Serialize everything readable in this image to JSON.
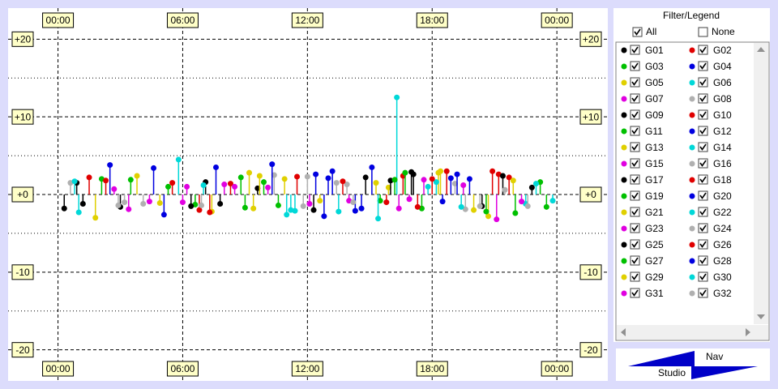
{
  "chart_data": {
    "type": "scatter",
    "xlim": [
      -2.4,
      26.45
    ],
    "ylim": [
      -24,
      24
    ],
    "xticks": [
      {
        "value": 0,
        "label": "00:00"
      },
      {
        "value": 6,
        "label": "06:00"
      },
      {
        "value": 12,
        "label": "12:00"
      },
      {
        "value": 18,
        "label": "18:00"
      },
      {
        "value": 24,
        "label": "00:00"
      }
    ],
    "yticks": [
      {
        "value": 20,
        "label": "+20"
      },
      {
        "value": 10,
        "label": "+10"
      },
      {
        "value": 0,
        "label": "+0"
      },
      -10,
      -20
    ],
    "y_minor_ticks": [
      15,
      5,
      -5,
      -15
    ],
    "grid": true,
    "series": [
      {
        "name": "G01",
        "color": "#000000",
        "x": [
          1.2,
          9.6,
          17.1,
          20.4
        ],
        "values": [
          -1.2,
          0.8,
          2.6,
          -1.5
        ]
      },
      {
        "name": "G02",
        "color": "#e00000",
        "x": [
          5.5,
          15.8,
          18.7,
          21.7
        ],
        "values": [
          1.5,
          -1.0,
          3.0,
          2.2
        ]
      },
      {
        "name": "G03",
        "color": "#00c000",
        "x": [
          2.1,
          10.6,
          17.5,
          23.2
        ],
        "values": [
          2.0,
          -1.4,
          -1.8,
          1.6
        ]
      },
      {
        "name": "G04",
        "color": "#0000e0",
        "x": [
          4.6,
          13.2,
          14.3,
          19.8
        ],
        "values": [
          3.4,
          3.0,
          -2.1,
          2.0
        ]
      },
      {
        "name": "G05",
        "color": "#e0d000",
        "x": [
          1.8,
          9.4,
          18.3,
          20.0
        ],
        "values": [
          -3.0,
          -1.8,
          2.8,
          -2.0
        ]
      },
      {
        "name": "G06",
        "color": "#00d8d8",
        "x": [
          11.2,
          16.3,
          18.2,
          22.5
        ],
        "values": [
          -2.0,
          12.5,
          1.6,
          -1.2
        ]
      },
      {
        "name": "G07",
        "color": "#e000e0",
        "x": [
          6.2,
          10.1,
          16.9,
          21.1
        ],
        "values": [
          1.0,
          0.9,
          -0.6,
          -3.2
        ]
      },
      {
        "name": "G08",
        "color": "#b0b0b0",
        "x": [
          3.2,
          12.0,
          19.1,
          20.3
        ],
        "values": [
          -1.0,
          2.3,
          1.4,
          -1.5
        ]
      },
      {
        "name": "G09",
        "color": "#000000",
        "x": [
          0.9,
          7.8,
          14.8,
          22.8
        ],
        "values": [
          1.5,
          -1.2,
          2.2,
          0.9
        ]
      },
      {
        "name": "G10",
        "color": "#e00000",
        "x": [
          6.8,
          11.5,
          16.6,
          21.2
        ],
        "values": [
          -2.0,
          2.3,
          2.4,
          2.6
        ]
      },
      {
        "name": "G11",
        "color": "#00c000",
        "x": [
          3.5,
          8.8,
          15.5,
          23.5
        ],
        "values": [
          1.9,
          2.2,
          -0.8,
          -1.6
        ]
      },
      {
        "name": "G12",
        "color": "#0000e0",
        "x": [
          5.1,
          12.8,
          15.1,
          18.9
        ],
        "values": [
          -2.6,
          -2.8,
          3.5,
          2.1
        ]
      },
      {
        "name": "G13",
        "color": "#e0d000",
        "x": [
          7.4,
          10.9,
          15.9,
          21.9
        ],
        "values": [
          -2.2,
          2.0,
          0.9,
          1.8
        ]
      },
      {
        "name": "G14",
        "color": "#00d8d8",
        "x": [
          5.8,
          13.5,
          17.8,
          23.8
        ],
        "values": [
          4.5,
          -2.2,
          1.0,
          -0.8
        ]
      },
      {
        "name": "G15",
        "color": "#e000e0",
        "x": [
          2.7,
          6.0,
          14.0,
          19.5
        ],
        "values": [
          0.7,
          -1.0,
          -0.8,
          1.2
        ]
      },
      {
        "name": "G16",
        "color": "#b0b0b0",
        "x": [
          4.1,
          11.8,
          13.9,
          19.6
        ],
        "values": [
          -1.2,
          -1.5,
          1.3,
          -1.9
        ]
      },
      {
        "name": "G17",
        "color": "#000000",
        "x": [
          0.3,
          7.1,
          16.0,
          21.4
        ],
        "values": [
          -1.8,
          1.6,
          1.8,
          2.4
        ]
      },
      {
        "name": "G18",
        "color": "#e00000",
        "x": [
          2.3,
          8.3,
          17.3,
          20.9
        ],
        "values": [
          1.8,
          1.4,
          -1.6,
          3.0
        ]
      },
      {
        "name": "G19",
        "color": "#00c000",
        "x": [
          6.6,
          9.9,
          16.7,
          22.0
        ],
        "values": [
          -1.3,
          1.6,
          2.8,
          -2.4
        ]
      },
      {
        "name": "G20",
        "color": "#0000e0",
        "x": [
          7.6,
          12.4,
          14.6,
          19.2
        ],
        "values": [
          3.5,
          2.6,
          -1.8,
          2.6
        ]
      },
      {
        "name": "G21",
        "color": "#e0d000",
        "x": [
          3.8,
          9.2,
          15.3,
          20.7
        ],
        "values": [
          2.4,
          2.8,
          1.5,
          -2.8
        ]
      },
      {
        "name": "G22",
        "color": "#00d8d8",
        "x": [
          1.0,
          11.0,
          15.4,
          23.0
        ],
        "values": [
          -2.3,
          -2.6,
          -3.1,
          1.4
        ]
      },
      {
        "name": "G23",
        "color": "#e000e0",
        "x": [
          4.4,
          8.0,
          17.6,
          22.3
        ],
        "values": [
          -0.9,
          1.3,
          1.9,
          -0.9
        ]
      },
      {
        "name": "G24",
        "color": "#b0b0b0",
        "x": [
          0.6,
          10.4,
          14.2,
          21.5
        ],
        "values": [
          1.5,
          2.5,
          -1.0,
          0.6
        ]
      },
      {
        "name": "G25",
        "color": "#000000",
        "x": [
          3.0,
          6.4,
          12.3,
          17.0
        ],
        "values": [
          -1.6,
          -1.5,
          -2.0,
          2.9
        ]
      },
      {
        "name": "G26",
        "color": "#e00000",
        "x": [
          1.5,
          7.3,
          13.7,
          18.0
        ],
        "values": [
          2.2,
          -2.3,
          1.7,
          2.0
        ]
      },
      {
        "name": "G27",
        "color": "#00c000",
        "x": [
          5.3,
          9.0,
          16.2,
          20.6
        ],
        "values": [
          1.0,
          -1.7,
          1.9,
          -2.2
        ]
      },
      {
        "name": "G28",
        "color": "#0000e0",
        "x": [
          2.5,
          10.3,
          13.0,
          18.5
        ],
        "values": [
          3.8,
          3.9,
          2.1,
          -0.9
        ]
      },
      {
        "name": "G29",
        "color": "#e0d000",
        "x": [
          4.9,
          9.7,
          12.6,
          18.4
        ],
        "values": [
          -1.1,
          2.4,
          -0.8,
          3.0
        ]
      },
      {
        "name": "G30",
        "color": "#00d8d8",
        "x": [
          0.8,
          7.0,
          11.4,
          19.4
        ],
        "values": [
          1.7,
          1.2,
          -2.1,
          -1.6
        ]
      },
      {
        "name": "G31",
        "color": "#e000e0",
        "x": [
          3.4,
          8.5,
          12.1,
          16.4
        ],
        "values": [
          -1.9,
          1.0,
          -1.2,
          -1.8
        ]
      },
      {
        "name": "G32",
        "color": "#b0b0b0",
        "x": [
          2.9,
          6.9,
          13.4,
          22.6
        ],
        "values": [
          -1.4,
          -1.4,
          1.5,
          -1.5
        ]
      }
    ]
  },
  "filter": {
    "title": "Filter/Legend",
    "all": "All",
    "none": "None",
    "all_checked": true,
    "none_checked": false
  },
  "logo": {
    "top": "Nav",
    "bottom": "Studio"
  }
}
